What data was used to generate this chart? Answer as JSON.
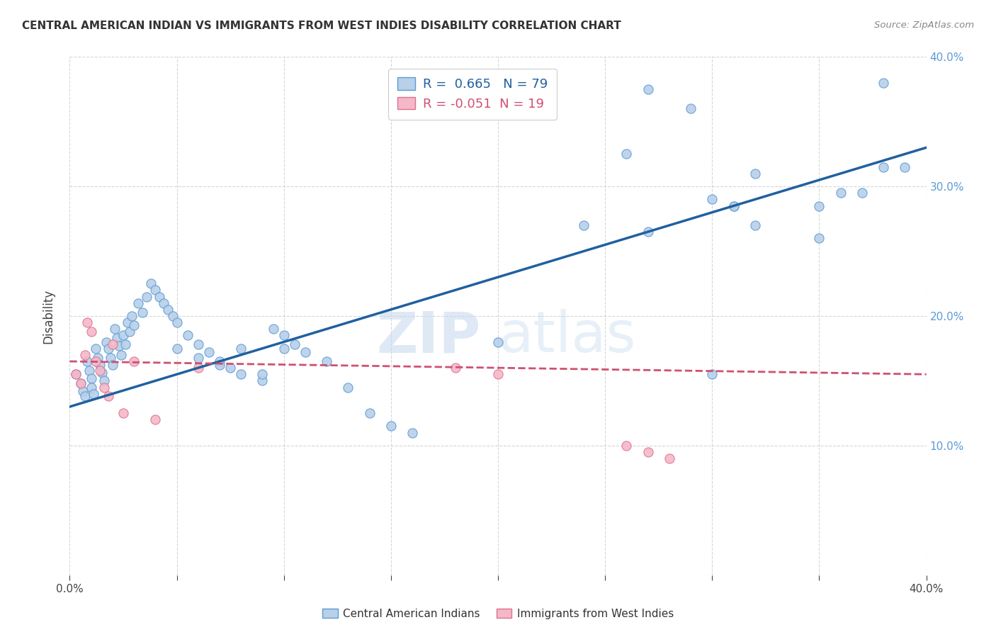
{
  "title": "CENTRAL AMERICAN INDIAN VS IMMIGRANTS FROM WEST INDIES DISABILITY CORRELATION CHART",
  "source": "Source: ZipAtlas.com",
  "ylabel": "Disability",
  "blue_R": 0.665,
  "blue_N": 79,
  "pink_R": -0.051,
  "pink_N": 19,
  "blue_color": "#b8d0e8",
  "blue_edge_color": "#5b9bd5",
  "blue_line_color": "#2060a0",
  "pink_color": "#f4b8c8",
  "pink_edge_color": "#e07090",
  "pink_line_color": "#d05070",
  "watermark_zip": "ZIP",
  "watermark_atlas": "atlas",
  "x_min": 0.0,
  "x_max": 0.4,
  "y_min": 0.0,
  "y_max": 0.4,
  "blue_line_x0": 0.0,
  "blue_line_y0": 0.13,
  "blue_line_x1": 0.4,
  "blue_line_y1": 0.33,
  "pink_line_x0": 0.0,
  "pink_line_y0": 0.165,
  "pink_line_x1": 0.4,
  "pink_line_y1": 0.155,
  "blue_scatter_x": [
    0.003,
    0.005,
    0.006,
    0.007,
    0.008,
    0.009,
    0.01,
    0.01,
    0.011,
    0.012,
    0.013,
    0.014,
    0.015,
    0.016,
    0.017,
    0.018,
    0.019,
    0.02,
    0.021,
    0.022,
    0.023,
    0.024,
    0.025,
    0.026,
    0.027,
    0.028,
    0.029,
    0.03,
    0.032,
    0.034,
    0.036,
    0.038,
    0.04,
    0.042,
    0.044,
    0.046,
    0.048,
    0.05,
    0.055,
    0.06,
    0.065,
    0.07,
    0.075,
    0.08,
    0.09,
    0.095,
    0.1,
    0.105,
    0.11,
    0.12,
    0.13,
    0.14,
    0.15,
    0.16,
    0.05,
    0.06,
    0.07,
    0.08,
    0.09,
    0.1,
    0.2,
    0.24,
    0.27,
    0.29,
    0.31,
    0.27,
    0.3,
    0.32,
    0.35,
    0.37,
    0.3,
    0.32,
    0.35,
    0.36,
    0.38,
    0.26,
    0.31,
    0.38,
    0.39
  ],
  "blue_scatter_y": [
    0.155,
    0.148,
    0.142,
    0.138,
    0.165,
    0.158,
    0.152,
    0.145,
    0.14,
    0.175,
    0.168,
    0.162,
    0.156,
    0.15,
    0.18,
    0.175,
    0.168,
    0.162,
    0.19,
    0.183,
    0.177,
    0.17,
    0.185,
    0.178,
    0.195,
    0.188,
    0.2,
    0.193,
    0.21,
    0.203,
    0.215,
    0.225,
    0.22,
    0.215,
    0.21,
    0.205,
    0.2,
    0.195,
    0.185,
    0.178,
    0.172,
    0.165,
    0.16,
    0.155,
    0.15,
    0.19,
    0.185,
    0.178,
    0.172,
    0.165,
    0.145,
    0.125,
    0.115,
    0.11,
    0.175,
    0.168,
    0.162,
    0.175,
    0.155,
    0.175,
    0.18,
    0.27,
    0.375,
    0.36,
    0.285,
    0.265,
    0.29,
    0.27,
    0.26,
    0.295,
    0.155,
    0.31,
    0.285,
    0.295,
    0.315,
    0.325,
    0.285,
    0.38,
    0.315
  ],
  "pink_scatter_x": [
    0.003,
    0.005,
    0.007,
    0.008,
    0.01,
    0.012,
    0.014,
    0.016,
    0.018,
    0.02,
    0.025,
    0.03,
    0.04,
    0.06,
    0.18,
    0.2,
    0.26,
    0.27,
    0.28
  ],
  "pink_scatter_y": [
    0.155,
    0.148,
    0.17,
    0.195,
    0.188,
    0.165,
    0.158,
    0.145,
    0.138,
    0.178,
    0.125,
    0.165,
    0.12,
    0.16,
    0.16,
    0.155,
    0.1,
    0.095,
    0.09
  ]
}
